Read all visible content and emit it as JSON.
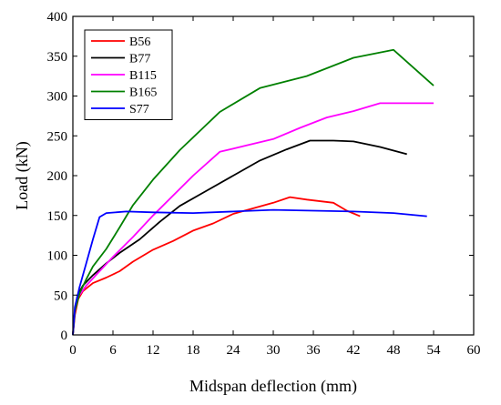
{
  "chart_data": {
    "type": "line",
    "xlabel": "Midspan deflection (mm)",
    "ylabel": "Load (kN)",
    "xlim": [
      0,
      60
    ],
    "ylim": [
      0,
      400
    ],
    "xticks": [
      0,
      6,
      12,
      18,
      24,
      30,
      36,
      42,
      48,
      54,
      60
    ],
    "yticks": [
      0,
      50,
      100,
      150,
      200,
      250,
      300,
      350,
      400
    ],
    "grid": false,
    "legend_position": "top-left",
    "series": [
      {
        "name": "B56",
        "color": "#ff0000",
        "points": [
          [
            0,
            0
          ],
          [
            0.3,
            25
          ],
          [
            0.8,
            45
          ],
          [
            1.5,
            55
          ],
          [
            3,
            65
          ],
          [
            5,
            72
          ],
          [
            7,
            80
          ],
          [
            9,
            92
          ],
          [
            12,
            107
          ],
          [
            15,
            118
          ],
          [
            18,
            131
          ],
          [
            21,
            140
          ],
          [
            24,
            152
          ],
          [
            27,
            159
          ],
          [
            30,
            166
          ],
          [
            32.5,
            173
          ],
          [
            35,
            170
          ],
          [
            39,
            166
          ],
          [
            41,
            156
          ],
          [
            43,
            149
          ]
        ]
      },
      {
        "name": "B77",
        "color": "#000000",
        "points": [
          [
            0,
            0
          ],
          [
            0.3,
            30
          ],
          [
            0.7,
            50
          ],
          [
            1.5,
            62
          ],
          [
            3,
            75
          ],
          [
            5,
            90
          ],
          [
            7,
            103
          ],
          [
            10,
            120
          ],
          [
            13,
            142
          ],
          [
            16,
            162
          ],
          [
            20,
            181
          ],
          [
            24,
            200
          ],
          [
            28,
            219
          ],
          [
            32,
            233
          ],
          [
            35.5,
            244
          ],
          [
            39,
            244
          ],
          [
            42,
            243
          ],
          [
            46,
            236
          ],
          [
            50,
            227
          ]
        ]
      },
      {
        "name": "B115",
        "color": "#ff00ff",
        "points": [
          [
            0,
            0
          ],
          [
            0.3,
            30
          ],
          [
            0.8,
            48
          ],
          [
            2,
            62
          ],
          [
            4,
            80
          ],
          [
            6,
            98
          ],
          [
            9,
            123
          ],
          [
            12,
            150
          ],
          [
            15,
            175
          ],
          [
            18,
            200
          ],
          [
            22,
            230
          ],
          [
            26,
            238
          ],
          [
            30,
            246
          ],
          [
            34,
            260
          ],
          [
            38,
            273
          ],
          [
            42,
            281
          ],
          [
            46,
            291
          ],
          [
            50,
            291
          ],
          [
            54,
            291
          ]
        ]
      },
      {
        "name": "B165",
        "color": "#008000",
        "points": [
          [
            0,
            0
          ],
          [
            0.3,
            30
          ],
          [
            1,
            52
          ],
          [
            2,
            70
          ],
          [
            3,
            86
          ],
          [
            5,
            108
          ],
          [
            7,
            135
          ],
          [
            9,
            163
          ],
          [
            12,
            195
          ],
          [
            16,
            232
          ],
          [
            22,
            280
          ],
          [
            28,
            310
          ],
          [
            35,
            325
          ],
          [
            42,
            348
          ],
          [
            48,
            358
          ],
          [
            54,
            313
          ]
        ]
      },
      {
        "name": "S77",
        "color": "#0000ff",
        "points": [
          [
            0,
            0
          ],
          [
            0.3,
            35
          ],
          [
            1,
            60
          ],
          [
            2,
            90
          ],
          [
            3,
            120
          ],
          [
            4,
            148
          ],
          [
            5,
            153
          ],
          [
            8,
            155
          ],
          [
            12,
            154
          ],
          [
            18,
            153
          ],
          [
            24,
            155
          ],
          [
            30,
            157
          ],
          [
            36,
            156
          ],
          [
            42,
            155
          ],
          [
            48,
            153
          ],
          [
            53,
            149
          ]
        ]
      }
    ]
  }
}
